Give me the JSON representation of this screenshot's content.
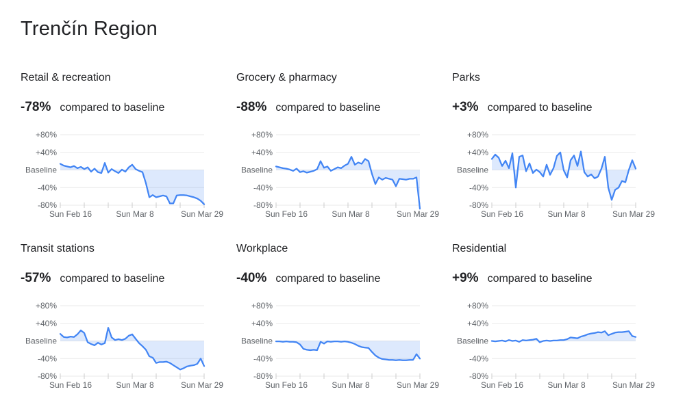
{
  "page": {
    "title": "Trenčín Region"
  },
  "colors": {
    "line": "#4285f4",
    "fill": "#4285f4",
    "fill_opacity": 0.18,
    "gridline": "#e9e9e9",
    "axis": "#cccccc",
    "axis_text": "#5f6368",
    "heading_text": "#202124"
  },
  "chart_data": {
    "type": "line",
    "baseline_fill": true,
    "x_axis": {
      "tick_labels": [
        "Sun Feb 16",
        "Sun Mar 8",
        "Sun Mar 29"
      ],
      "label_days": [
        0,
        21,
        42
      ],
      "minor_tick_days": [
        0,
        7,
        14,
        21,
        28,
        35,
        42
      ],
      "days_total": 43
    },
    "y_axis": {
      "tick_labels": [
        "+80%",
        "+40%",
        "Baseline",
        "-40%",
        "-80%"
      ],
      "tick_values": [
        80,
        40,
        0,
        -40,
        -80
      ],
      "ylim": [
        -80,
        80
      ],
      "unit": "%"
    },
    "charts": [
      {
        "title": "Retail & recreation",
        "change": "-78%",
        "suffix": "compared to baseline",
        "values": [
          14,
          10,
          8,
          6,
          9,
          4,
          7,
          2,
          6,
          -4,
          3,
          -5,
          -7,
          16,
          -6,
          2,
          -3,
          -7,
          1,
          -4,
          6,
          12,
          2,
          -2,
          -5,
          -30,
          -62,
          -57,
          -62,
          -60,
          -58,
          -60,
          -76,
          -76,
          -58,
          -57,
          -57,
          -58,
          -60,
          -62,
          -65,
          -70,
          -78
        ]
      },
      {
        "title": "Grocery & pharmacy",
        "change": "-88%",
        "suffix": "compared to baseline",
        "values": [
          8,
          6,
          4,
          3,
          1,
          -2,
          3,
          -5,
          -3,
          -6,
          -4,
          -2,
          2,
          20,
          5,
          8,
          -2,
          2,
          6,
          4,
          10,
          14,
          30,
          12,
          17,
          14,
          25,
          20,
          -9,
          -32,
          -17,
          -22,
          -18,
          -20,
          -22,
          -37,
          -20,
          -21,
          -22,
          -20,
          -20,
          -17,
          -88
        ]
      },
      {
        "title": "Parks",
        "change": "+3%",
        "suffix": "compared to baseline",
        "values": [
          25,
          35,
          28,
          9,
          21,
          4,
          38,
          -40,
          30,
          33,
          -3,
          15,
          -7,
          1,
          -5,
          -15,
          12,
          -11,
          4,
          32,
          40,
          -1,
          -17,
          22,
          33,
          9,
          42,
          -5,
          -15,
          -10,
          -19,
          -15,
          3,
          30,
          -40,
          -68,
          -45,
          -40,
          -25,
          -28,
          0,
          22,
          3
        ]
      },
      {
        "title": "Transit stations",
        "change": "-57%",
        "suffix": "compared to baseline",
        "values": [
          16,
          9,
          8,
          10,
          9,
          15,
          24,
          18,
          -3,
          -7,
          -10,
          -4,
          -8,
          -5,
          30,
          8,
          2,
          4,
          2,
          5,
          12,
          15,
          5,
          -5,
          -12,
          -20,
          -35,
          -38,
          -50,
          -48,
          -48,
          -47,
          -50,
          -55,
          -60,
          -65,
          -62,
          -58,
          -56,
          -55,
          -52,
          -40,
          -57
        ]
      },
      {
        "title": "Workplace",
        "change": "-40%",
        "suffix": "compared to baseline",
        "values": [
          -1,
          -1,
          -2,
          -1,
          -2,
          -2,
          -3,
          -8,
          -18,
          -20,
          -21,
          -20,
          -21,
          -2,
          -6,
          -1,
          -2,
          -1,
          -1,
          -2,
          -1,
          -2,
          -4,
          -7,
          -11,
          -14,
          -15,
          -16,
          -25,
          -33,
          -38,
          -41,
          -42,
          -43,
          -43,
          -44,
          -43,
          -44,
          -44,
          -43,
          -43,
          -30,
          -40
        ]
      },
      {
        "title": "Residential",
        "change": "+9%",
        "suffix": "compared to baseline",
        "values": [
          0,
          -1,
          0,
          1,
          -1,
          2,
          0,
          1,
          -2,
          2,
          1,
          2,
          3,
          5,
          -3,
          0,
          1,
          0,
          1,
          1,
          2,
          2,
          4,
          8,
          7,
          6,
          10,
          12,
          15,
          17,
          18,
          20,
          19,
          22,
          13,
          16,
          19,
          20,
          20,
          21,
          22,
          11,
          9
        ]
      }
    ]
  }
}
